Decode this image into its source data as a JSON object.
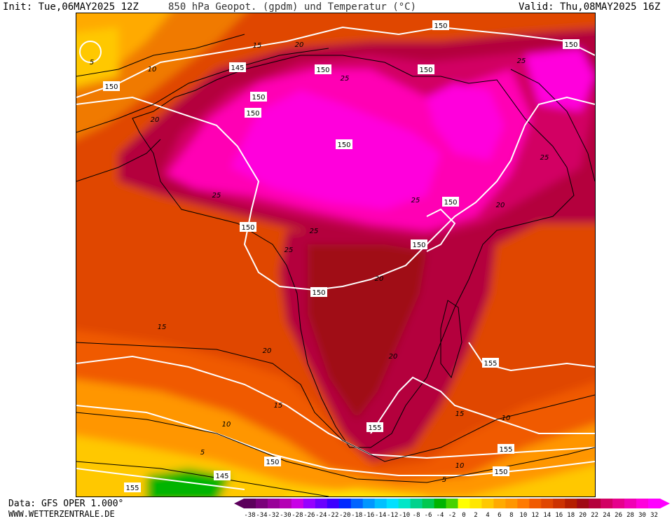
{
  "header": {
    "init": "Init: Tue,06MAY2025 12Z",
    "title": "850 hPa Geopot. (gpdm) und Temperatur (°C)",
    "valid": "Valid: Thu,08MAY2025 16Z"
  },
  "footer": {
    "data": "Data: GFS OPER 1.000°",
    "source": "WWW.WETTERZENTRALE.DE"
  },
  "legend": {
    "labels": [
      "-38",
      "-34",
      "-32",
      "-30",
      "-28",
      "-26",
      "-24",
      "-22",
      "-20",
      "-18",
      "-16",
      "-14",
      "-12",
      "-10",
      "-8",
      "-6",
      "-4",
      "-2",
      "0",
      "2",
      "4",
      "6",
      "8",
      "10",
      "12",
      "14",
      "16",
      "18",
      "20",
      "22",
      "24",
      "26",
      "28",
      "30",
      "32"
    ],
    "colors": [
      "#5c005c",
      "#7a007a",
      "#980098",
      "#b400b4",
      "#c800e6",
      "#9600ff",
      "#6a00ff",
      "#3c00ff",
      "#0028ff",
      "#0064ff",
      "#0096ff",
      "#00c0ff",
      "#00e0ff",
      "#00e6c8",
      "#00d28c",
      "#00c850",
      "#00b400",
      "#46d200",
      "#ffff00",
      "#ffe600",
      "#ffc800",
      "#ffaa00",
      "#ff9600",
      "#ff7a00",
      "#f05a00",
      "#e04600",
      "#cc3200",
      "#b41e00",
      "#a00a14",
      "#b4003c",
      "#d20064",
      "#e6008c",
      "#f000b4",
      "#ff00dc",
      "#ff00ff"
    ]
  },
  "map": {
    "contour_labels": {
      "geopotential": [
        {
          "text": "150",
          "name": "geopot-label-top-center"
        },
        {
          "text": "150",
          "name": "geopot-label-top-right"
        },
        {
          "text": "145",
          "name": "geopot-label-northwest"
        },
        {
          "text": "150",
          "name": "geopot-label-sahara-north"
        },
        {
          "text": "150",
          "name": "geopot-label-libya"
        },
        {
          "text": "150",
          "name": "geopot-label-west-atlantic"
        },
        {
          "text": "150",
          "name": "geopot-label-sahara-west"
        },
        {
          "text": "150",
          "name": "geopot-label-mali"
        },
        {
          "text": "150",
          "name": "geopot-label-sahel"
        },
        {
          "text": "150",
          "name": "geopot-label-horn"
        },
        {
          "text": "150",
          "name": "geopot-label-gulf-guinea"
        },
        {
          "text": "150",
          "name": "geopot-label-east-africa"
        },
        {
          "text": "150",
          "name": "geopot-label-congo"
        },
        {
          "text": "155",
          "name": "geopot-label-indian-ocean"
        },
        {
          "text": "155",
          "name": "geopot-label-south-africa"
        },
        {
          "text": "155",
          "name": "geopot-label-southeast"
        },
        {
          "text": "150",
          "name": "geopot-label-south-indian"
        },
        {
          "text": "150",
          "name": "geopot-label-south-atlantic"
        },
        {
          "text": "145",
          "name": "geopot-label-south-atlantic-low"
        },
        {
          "text": "155",
          "name": "geopot-label-southwest"
        }
      ],
      "temperature": [
        {
          "text": "5",
          "name": "temp-label-northwest-low"
        },
        {
          "text": "10",
          "name": "temp-label-northwest"
        },
        {
          "text": "15",
          "name": "temp-label-morocco"
        },
        {
          "text": "20",
          "name": "temp-label-algeria"
        },
        {
          "text": "20",
          "name": "temp-label-atlantic-west"
        },
        {
          "text": "25",
          "name": "temp-label-libya"
        },
        {
          "text": "25",
          "name": "temp-label-arabia"
        },
        {
          "text": "25",
          "name": "temp-label-west-africa"
        },
        {
          "text": "25",
          "name": "temp-label-sahel-central"
        },
        {
          "text": "25",
          "name": "temp-label-central-africa"
        },
        {
          "text": "25",
          "name": "temp-label-arabia-south"
        },
        {
          "text": "25",
          "name": "temp-label-horn"
        },
        {
          "text": "20",
          "name": "temp-label-indian-ocean"
        },
        {
          "text": "20",
          "name": "temp-label-congo"
        },
        {
          "text": "15",
          "name": "temp-label-south-atlantic"
        },
        {
          "text": "20",
          "name": "temp-label-angola"
        },
        {
          "text": "20",
          "name": "temp-label-mozambique"
        },
        {
          "text": "15",
          "name": "temp-label-namibia-coast"
        },
        {
          "text": "10",
          "name": "temp-label-south-atlantic-2"
        },
        {
          "text": "15",
          "name": "temp-label-madagascar-south"
        },
        {
          "text": "10",
          "name": "temp-label-southeast"
        },
        {
          "text": "10",
          "name": "temp-label-south-cape"
        },
        {
          "text": "5",
          "name": "temp-label-southwest-low"
        },
        {
          "text": "5",
          "name": "temp-label-south-low"
        }
      ]
    }
  }
}
